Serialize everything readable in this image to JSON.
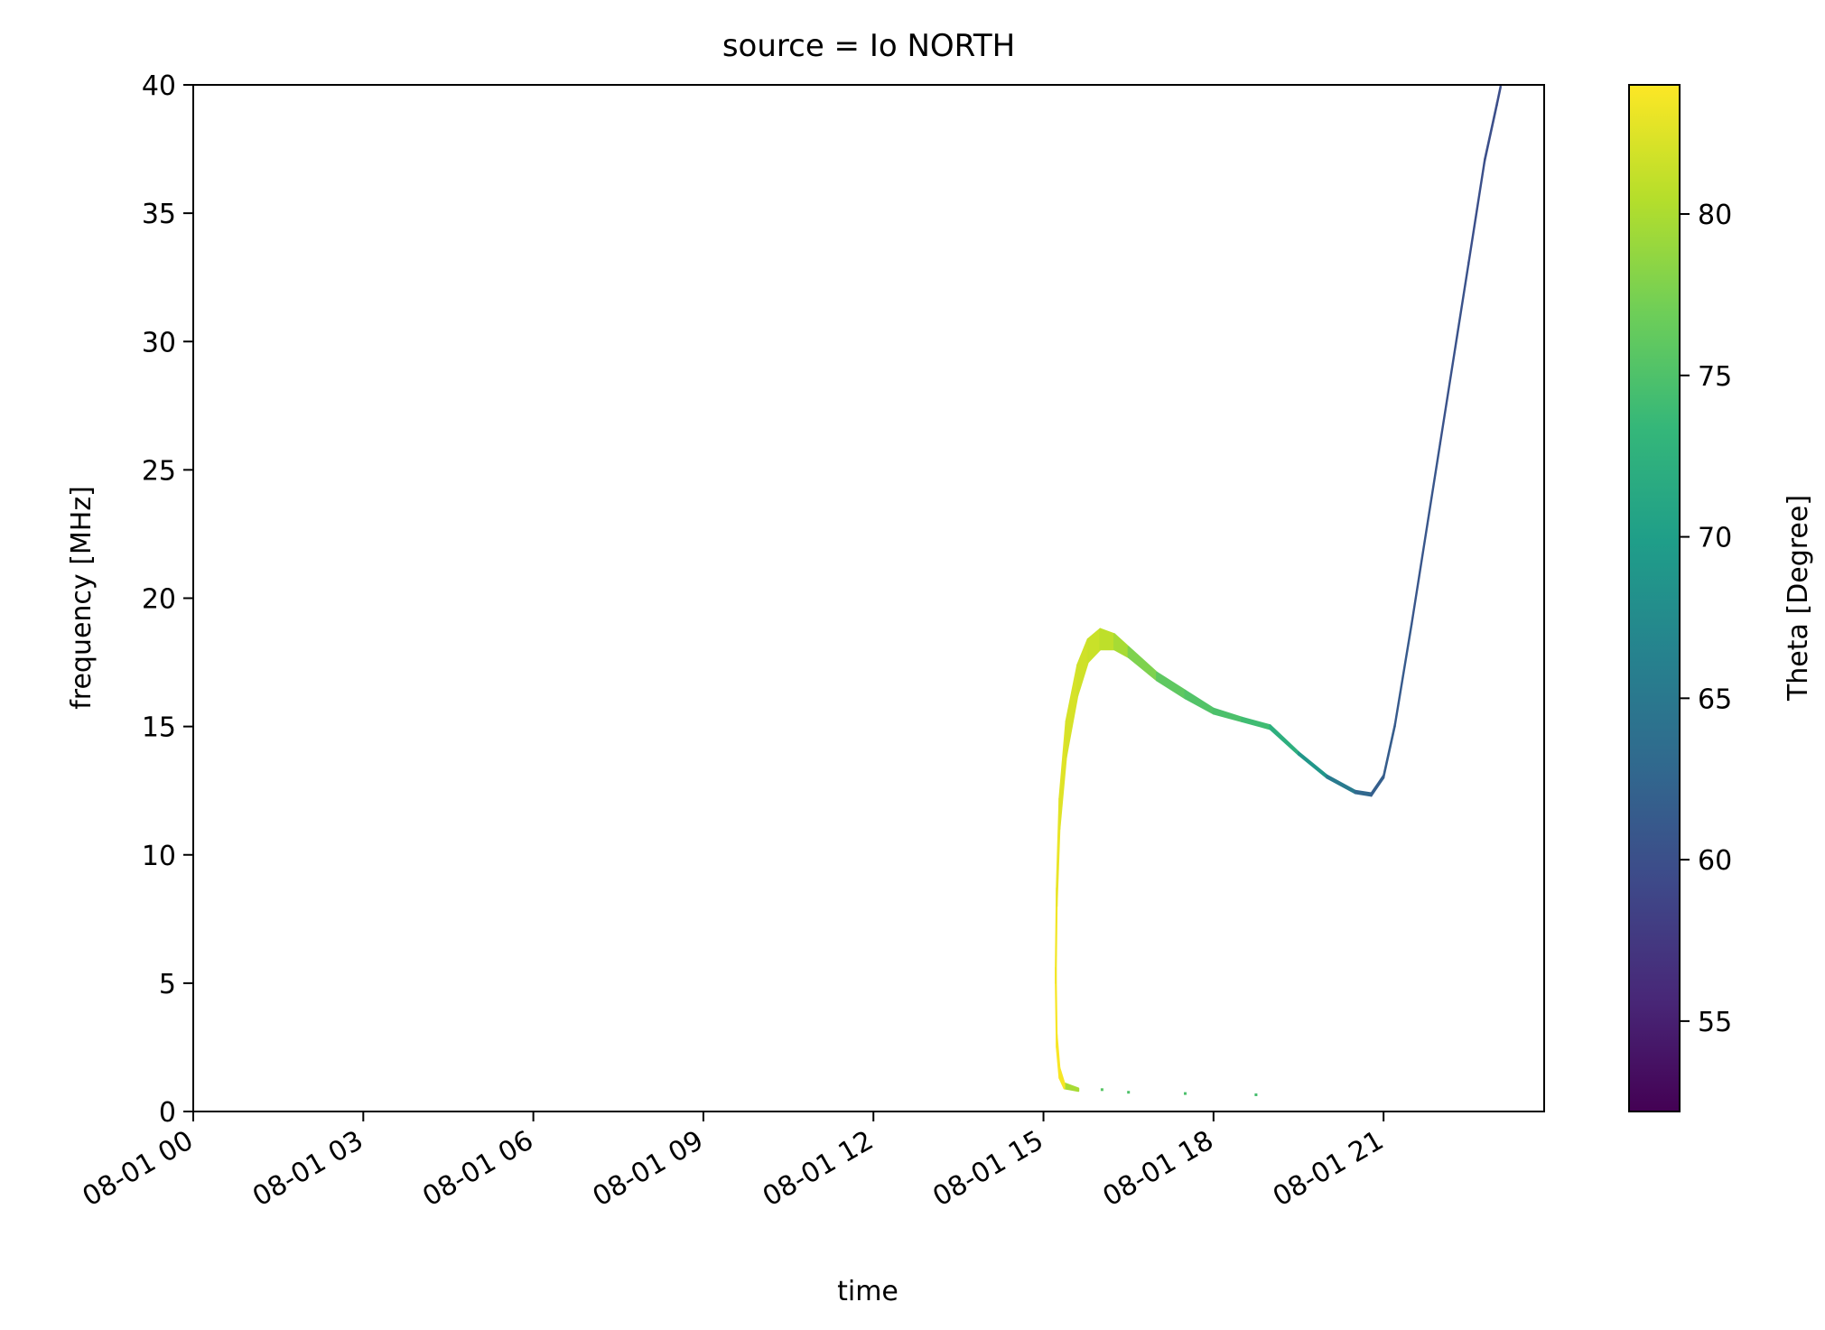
{
  "chart_data": {
    "type": "heatmap",
    "title": "source = Io NORTH",
    "xlabel": "time",
    "ylabel": "frequency [MHz]",
    "x_unit": "datetime",
    "xlim": [
      "08-01 00:00",
      "08-01 23:50"
    ],
    "ylim": [
      0,
      40
    ],
    "xticks": [
      "08-01 00",
      "08-01 03",
      "08-01 06",
      "08-01 09",
      "08-01 12",
      "08-01 15",
      "08-01 18",
      "08-01 21"
    ],
    "yticks": [
      0,
      5,
      10,
      15,
      20,
      25,
      30,
      35,
      40
    ],
    "grid": false,
    "colorbar": {
      "label": "Theta [Degree]",
      "range": [
        52.2,
        84.0
      ],
      "ticks": [
        55,
        60,
        65,
        70,
        75,
        80
      ],
      "colormap": "viridis",
      "stops": [
        "#440154",
        "#482878",
        "#3e4989",
        "#31688e",
        "#26828e",
        "#1f9e89",
        "#35b779",
        "#6ece58",
        "#b5de2b",
        "#fde725"
      ]
    },
    "series": [
      {
        "style": "band",
        "points": [
          {
            "time": "08-01 15:37",
            "f_low": 0.8,
            "f_high": 0.9,
            "theta": 76.0
          },
          {
            "time": "08-01 15:22",
            "f_low": 0.9,
            "f_high": 1.1,
            "theta": 83.5
          },
          {
            "time": "08-01 15:17",
            "f_low": 1.3,
            "f_high": 1.7,
            "theta": 83.8
          },
          {
            "time": "08-01 15:14",
            "f_low": 2.5,
            "f_high": 3.0,
            "theta": 83.8
          },
          {
            "time": "08-01 15:13",
            "f_low": 5.0,
            "f_high": 5.6,
            "theta": 83.6
          },
          {
            "time": "08-01 15:14",
            "f_low": 8.0,
            "f_high": 8.7,
            "theta": 83.3
          },
          {
            "time": "08-01 15:17",
            "f_low": 11.0,
            "f_high": 12.2,
            "theta": 82.8
          },
          {
            "time": "08-01 15:24",
            "f_low": 13.8,
            "f_high": 15.2,
            "theta": 82.3
          },
          {
            "time": "08-01 15:36",
            "f_low": 16.2,
            "f_high": 17.4,
            "theta": 81.9
          },
          {
            "time": "08-01 15:47",
            "f_low": 17.5,
            "f_high": 18.4,
            "theta": 81.6
          },
          {
            "time": "08-01 16:00",
            "f_low": 18.0,
            "f_high": 18.8,
            "theta": 81.3
          },
          {
            "time": "08-01 16:15",
            "f_low": 18.0,
            "f_high": 18.6,
            "theta": 80.5
          },
          {
            "time": "08-01 16:30",
            "f_low": 17.7,
            "f_high": 18.1,
            "theta": 79.0
          },
          {
            "time": "08-01 17:00",
            "f_low": 16.8,
            "f_high": 17.1,
            "theta": 76.5
          },
          {
            "time": "08-01 17:30",
            "f_low": 16.1,
            "f_high": 16.4,
            "theta": 75.5
          },
          {
            "time": "08-01 18:00",
            "f_low": 15.5,
            "f_high": 15.7,
            "theta": 75.0
          },
          {
            "time": "08-01 18:30",
            "f_low": 15.2,
            "f_high": 15.35,
            "theta": 74.7
          },
          {
            "time": "08-01 19:00",
            "f_low": 14.9,
            "f_high": 15.05,
            "theta": 73.5
          },
          {
            "time": "08-01 19:30",
            "f_low": 13.9,
            "f_high": 14.0,
            "theta": 71.0
          },
          {
            "time": "08-01 20:00",
            "f_low": 13.0,
            "f_high": 13.1,
            "theta": 67.0
          },
          {
            "time": "08-01 20:30",
            "f_low": 12.4,
            "f_high": 12.5,
            "theta": 63.5
          },
          {
            "time": "08-01 20:47",
            "f_low": 12.3,
            "f_high": 12.4,
            "theta": 62.0
          },
          {
            "time": "08-01 21:00",
            "f_low": 13.0,
            "f_high": 13.1,
            "theta": 61.5
          },
          {
            "time": "08-01 21:12",
            "f_low": 15.0,
            "f_high": 15.1,
            "theta": 61.5
          },
          {
            "time": "08-01 21:30",
            "f_low": 19.0,
            "f_high": 19.1,
            "theta": 61.0
          },
          {
            "time": "08-01 22:00",
            "f_low": 26.0,
            "f_high": 26.1,
            "theta": 60.5
          },
          {
            "time": "08-01 22:30",
            "f_low": 33.0,
            "f_high": 33.1,
            "theta": 60.0
          },
          {
            "time": "08-01 22:47",
            "f_low": 37.0,
            "f_high": 37.1,
            "theta": 60.0
          },
          {
            "time": "08-01 23:00",
            "f_low": 39.2,
            "f_high": 39.3,
            "theta": 59.8
          },
          {
            "time": "08-01 23:04",
            "f_low": 39.9,
            "f_high": 40.0,
            "theta": 59.8
          }
        ]
      },
      {
        "style": "scatter",
        "points": [
          {
            "time": "08-01 16:02",
            "f": 0.85,
            "theta": 75.5
          },
          {
            "time": "08-01 16:30",
            "f": 0.75,
            "theta": 75.0
          },
          {
            "time": "08-01 17:30",
            "f": 0.7,
            "theta": 74.8
          },
          {
            "time": "08-01 18:45",
            "f": 0.65,
            "theta": 74.5
          }
        ]
      }
    ]
  }
}
